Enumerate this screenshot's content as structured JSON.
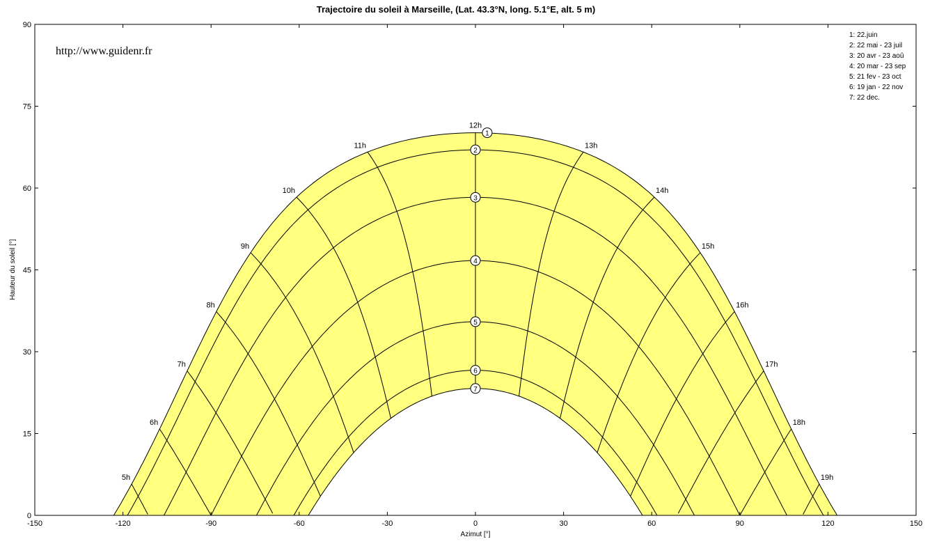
{
  "header": {
    "title": "Trajectoire du soleil  à  Marseille, (Lat. 43.3°N, long. 5.1°E, alt. 5 m)"
  },
  "watermark": "http://www.guidenr.fr",
  "legend": [
    "1: 22.juin",
    "2: 22 mai - 23 juil",
    "3: 20 avr - 23 aoû",
    "4: 20 mar - 23 sep",
    "5: 21 fev - 23 oct",
    "6: 19 jan - 22 nov",
    "7: 22 dec."
  ],
  "chart_data": {
    "type": "line",
    "title": "Trajectoire du soleil  à  Marseille, (Lat. 43.3°N, long. 5.1°E, alt. 5 m)",
    "xlabel": "Azimut [°]",
    "ylabel": "Hauteur du soleil [°]",
    "xlim": [
      -150,
      150
    ],
    "ylim": [
      0,
      90
    ],
    "xticks": [
      -150,
      -120,
      -90,
      -60,
      -30,
      0,
      30,
      60,
      90,
      120,
      150
    ],
    "yticks": [
      0,
      15,
      30,
      45,
      60,
      75,
      90
    ],
    "fill_color": "#ffff80",
    "line_color": "#000000",
    "latitude": 43.3,
    "series": [
      {
        "id": "1",
        "declination": 23.44
      },
      {
        "id": "2",
        "declination": 20.3
      },
      {
        "id": "3",
        "declination": 11.6
      },
      {
        "id": "4",
        "declination": 0.0
      },
      {
        "id": "5",
        "declination": -11.2
      },
      {
        "id": "6",
        "declination": -20.1
      },
      {
        "id": "7",
        "declination": -23.44
      }
    ],
    "hour_labels": [
      "5h",
      "6h",
      "7h",
      "8h",
      "9h",
      "10h",
      "11h",
      "12h",
      "13h",
      "14h",
      "15h",
      "16h",
      "17h",
      "18h",
      "19h"
    ]
  }
}
